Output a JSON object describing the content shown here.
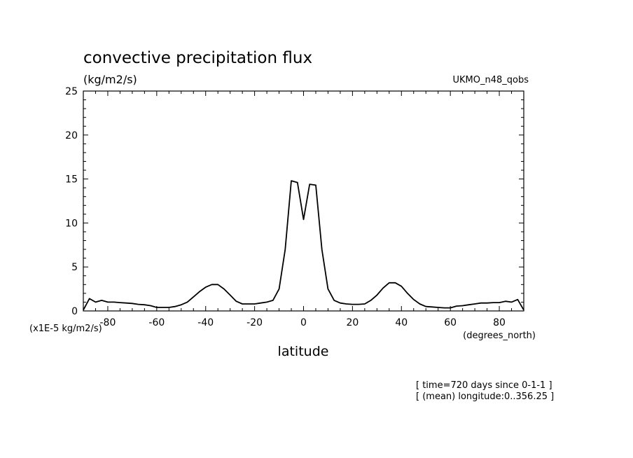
{
  "chart_data": {
    "type": "line",
    "title": "convective precipitation flux",
    "units": "(kg/m2/s)",
    "dataset": "UKMO_n48_qobs",
    "xlabel": "latitude",
    "xunits": "(degrees_north)",
    "yscale_note": "(x1E-5 kg/m2/s)",
    "xlim": [
      -90,
      90
    ],
    "ylim": [
      0,
      25
    ],
    "xticks": [
      -80,
      -60,
      -40,
      -20,
      0,
      20,
      40,
      60,
      80
    ],
    "yticks": [
      0,
      5,
      10,
      15,
      20,
      25
    ],
    "x_tick_labels": [
      "-80",
      "-60",
      "-40",
      "-20",
      "0",
      "20",
      "40",
      "60",
      "80"
    ],
    "y_tick_labels": [
      "0",
      "5",
      "10",
      "15",
      "20",
      "25"
    ],
    "info_lines": [
      "[ time=720 days since 0-1-1 ]",
      "[ (mean) longitude:0..356.25 ]"
    ],
    "series": [
      {
        "x": [
          -90,
          -87.5,
          -85,
          -82.5,
          -80,
          -77.5,
          -75,
          -72.5,
          -70,
          -67.5,
          -65,
          -62.5,
          -60,
          -57.5,
          -55,
          -52.5,
          -50,
          -47.5,
          -45,
          -42.5,
          -40,
          -37.5,
          -35,
          -32.5,
          -30,
          -27.5,
          -25,
          -22.5,
          -20,
          -17.5,
          -15,
          -12.5,
          -10,
          -7.5,
          -5,
          -2.5,
          0,
          2.5,
          5,
          7.5,
          10,
          12.5,
          15,
          17.5,
          20,
          22.5,
          25,
          27.5,
          30,
          32.5,
          35,
          37.5,
          40,
          42.5,
          45,
          47.5,
          50,
          52.5,
          55,
          57.5,
          60,
          62.5,
          65,
          67.5,
          70,
          72.5,
          75,
          77.5,
          80,
          82.5,
          85,
          87.5,
          90
        ],
        "y": [
          0.1,
          1.4,
          1.0,
          1.2,
          1.0,
          1.0,
          0.95,
          0.9,
          0.85,
          0.75,
          0.7,
          0.6,
          0.4,
          0.4,
          0.4,
          0.5,
          0.7,
          1.0,
          1.6,
          2.2,
          2.7,
          3.0,
          3.0,
          2.5,
          1.8,
          1.1,
          0.8,
          0.8,
          0.8,
          0.9,
          1.0,
          1.2,
          2.5,
          7.0,
          14.8,
          14.6,
          10.4,
          14.4,
          14.3,
          7.0,
          2.5,
          1.2,
          0.9,
          0.8,
          0.75,
          0.75,
          0.8,
          1.2,
          1.8,
          2.6,
          3.2,
          3.2,
          2.8,
          2.0,
          1.3,
          0.8,
          0.5,
          0.45,
          0.4,
          0.35,
          0.35,
          0.55,
          0.6,
          0.7,
          0.8,
          0.9,
          0.9,
          0.95,
          0.95,
          1.1,
          1.0,
          1.3,
          0.1
        ]
      }
    ],
    "grid": false,
    "line_color": "#000000"
  }
}
